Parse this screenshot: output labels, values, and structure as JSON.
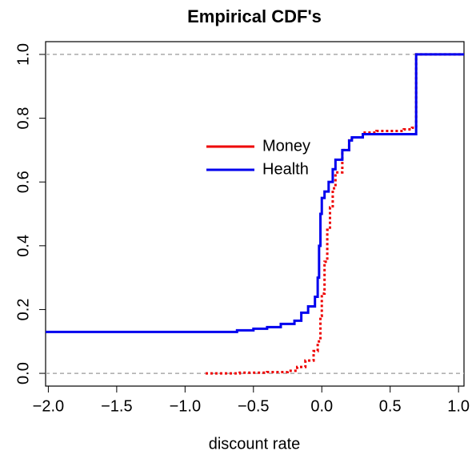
{
  "chart_data": {
    "type": "step",
    "title": "Empirical CDF's",
    "x_label": "discount rate",
    "xlim": [
      -2.02,
      1.04
    ],
    "ylim": [
      -0.04,
      1.04
    ],
    "xticks": [
      {
        "value": -2.0,
        "label": "−2.0"
      },
      {
        "value": -1.5,
        "label": "−1.5"
      },
      {
        "value": -1.0,
        "label": "−1.0"
      },
      {
        "value": -0.5,
        "label": "−0.5"
      },
      {
        "value": 0,
        "label": "0.0"
      },
      {
        "value": 0.5,
        "label": "0.5"
      },
      {
        "value": 1.0,
        "label": "1.0"
      }
    ],
    "yticks": [
      {
        "value": 0,
        "label": "0.0"
      },
      {
        "value": 0.2,
        "label": "0.2"
      },
      {
        "value": 0.4,
        "label": "0.4"
      },
      {
        "value": 0.6,
        "label": "0.6"
      },
      {
        "value": 0.8,
        "label": "0.8"
      },
      {
        "value": 1.0,
        "label": "1.0"
      }
    ],
    "hlines": [
      0,
      1
    ],
    "legend": "center",
    "series": [
      {
        "name": "Money",
        "color": "#ee0000",
        "x": [
          -0.85,
          -0.6,
          -0.4,
          -0.25,
          -0.18,
          -0.12,
          -0.06,
          -0.03,
          -0.01,
          0.0,
          0.02,
          0.04,
          0.06,
          0.08,
          0.1,
          0.15,
          0.2,
          0.22,
          0.3,
          0.4,
          0.6,
          0.66,
          0.69,
          1.04
        ],
        "values": [
          0.0,
          0.002,
          0.004,
          0.008,
          0.02,
          0.04,
          0.07,
          0.1,
          0.18,
          0.25,
          0.35,
          0.45,
          0.52,
          0.58,
          0.63,
          0.7,
          0.73,
          0.74,
          0.755,
          0.76,
          0.765,
          0.77,
          1.0,
          1.0
        ]
      },
      {
        "name": "Health",
        "color": "#0000ee",
        "x": [
          -2.02,
          -0.62,
          -0.5,
          -0.4,
          -0.3,
          -0.2,
          -0.15,
          -0.1,
          -0.05,
          -0.03,
          -0.02,
          -0.01,
          0.0,
          0.02,
          0.05,
          0.08,
          0.1,
          0.15,
          0.2,
          0.22,
          0.3,
          0.69,
          1.04
        ],
        "values": [
          0.13,
          0.135,
          0.14,
          0.145,
          0.155,
          0.165,
          0.19,
          0.21,
          0.24,
          0.3,
          0.4,
          0.5,
          0.55,
          0.57,
          0.6,
          0.64,
          0.67,
          0.7,
          0.73,
          0.74,
          0.75,
          1.0,
          1.0
        ]
      }
    ]
  }
}
